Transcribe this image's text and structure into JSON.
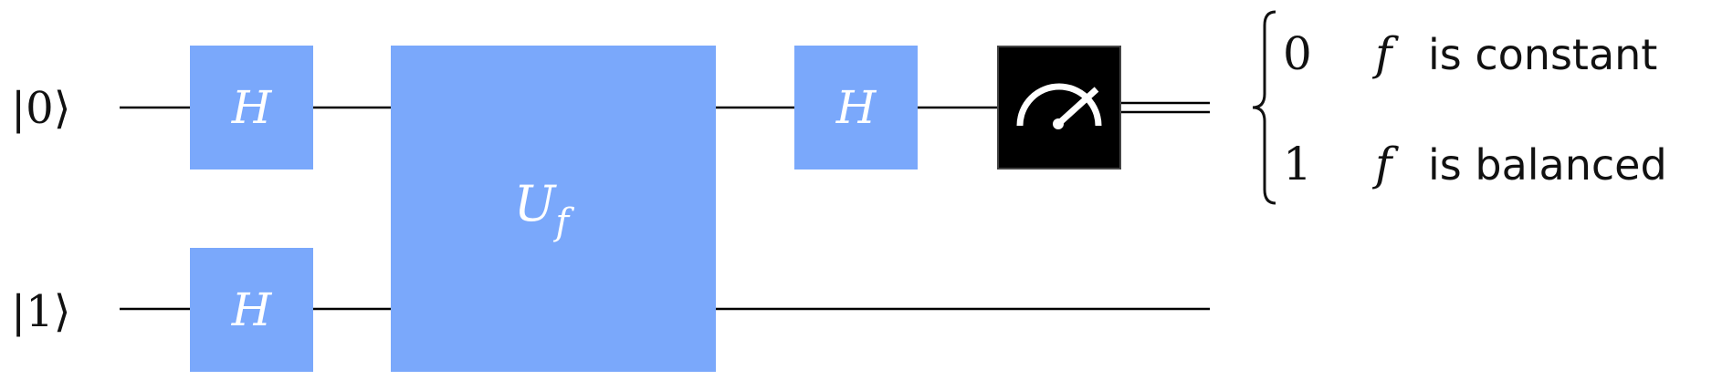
{
  "colors": {
    "gate_fill": "#7aa8fb",
    "gate_text": "#ffffff",
    "wire": "#000000",
    "measure_fill": "#000000",
    "measure_icon": "#ffffff",
    "text": "#111111"
  },
  "qubits": [
    {
      "state_label": "|0⟩",
      "state_value": "0"
    },
    {
      "state_label": "|1⟩",
      "state_value": "1"
    }
  ],
  "gates": {
    "h_top_1": "H",
    "h_bottom_1": "H",
    "oracle_main": "U",
    "oracle_sub": "f",
    "h_top_2": "H"
  },
  "measurement": {
    "icon": "meter-icon"
  },
  "outcomes": [
    {
      "value": "0",
      "func": "f",
      "desc": "is constant"
    },
    {
      "value": "1",
      "func": "f",
      "desc": "is balanced"
    }
  ]
}
